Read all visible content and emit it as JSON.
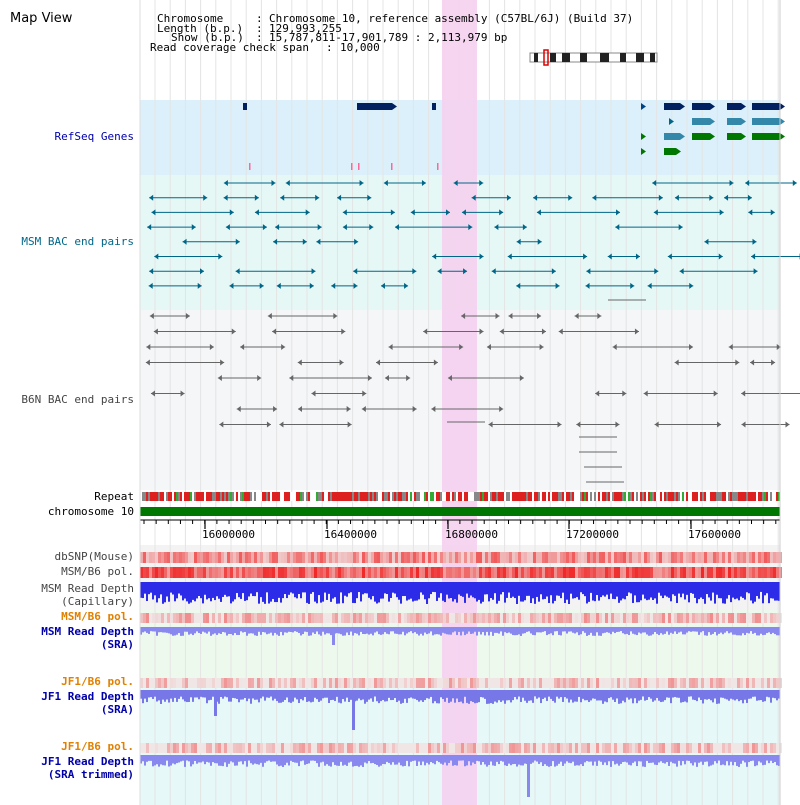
{
  "view": {
    "title": "Map View",
    "header": {
      "chromosome_label": "Chromosome",
      "chromosome_value": "Chromosome 10, reference assembly (C57BL/6J) (Build 37)",
      "length_label": "Length (b.p.)",
      "length_value": "129,993,255",
      "show_label": "Show (b.p.)",
      "show_value": "15,787,811-17,901,789 : 2,113,979 bp",
      "coverage_label": "Read coverage check span",
      "coverage_value": "10,000",
      "sep": ":"
    }
  },
  "tracks": {
    "refseq": {
      "label": "RefSeq Genes",
      "color": "#0000aa"
    },
    "msm_bac": {
      "label": "MSM BAC end pairs",
      "color": "#006688"
    },
    "b6n_bac": {
      "label": "B6N BAC end pairs",
      "color": "#444444"
    },
    "repeat": {
      "label": "Repeat"
    },
    "chromosome": {
      "label": "chromosome 10"
    },
    "dbsnp": {
      "label": "dbSNP(Mouse)"
    },
    "msm_b6_pol": {
      "label": "MSM/B6 pol."
    },
    "msm_depth_cap": {
      "label1": "MSM Read Depth",
      "label2": "(Capillary)"
    },
    "msm_b6_pol2": {
      "label": "MSM/B6 pol.",
      "color": "#e08000"
    },
    "msm_depth_sra": {
      "label1": "MSM Read Depth",
      "label2": "(SRA)",
      "color": "#0000aa"
    },
    "jf1_b6_pol": {
      "label": "JF1/B6 pol.",
      "color": "#e08000"
    },
    "jf1_depth_sra": {
      "label1": "JF1 Read Depth",
      "label2": "(SRA)",
      "color": "#0000aa"
    },
    "jf1_b6_pol2": {
      "label": "JF1/B6 pol.",
      "color": "#e08000"
    },
    "jf1_depth_trim": {
      "label1": "JF1 Read Depth",
      "label2": "(SRA trimmed)",
      "color": "#0000aa"
    }
  },
  "axis": {
    "ticks": [
      "16000000",
      "16400000",
      "16800000",
      "17200000",
      "17600000"
    ]
  },
  "colors": {
    "highlight": "#f5d0f0",
    "refseq_bg": "#dbf0fa",
    "msm_bg": "#e6f8f6",
    "b6n_bg": "#f4f6f8",
    "chromosome_bar": "#007700",
    "depth_blue": "#2b2be8",
    "pol_red": "#e83030"
  }
}
